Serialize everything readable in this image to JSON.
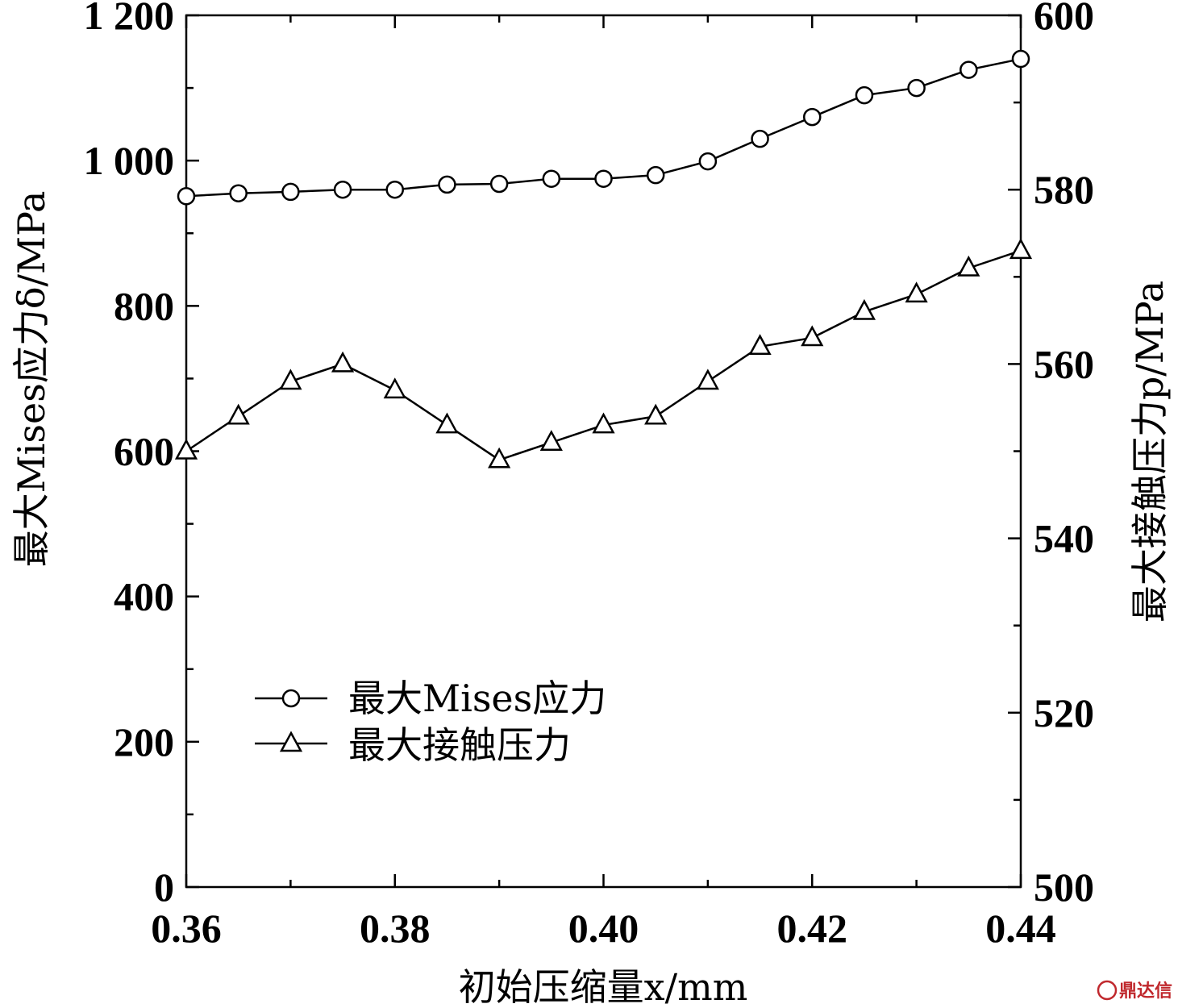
{
  "chart_data": {
    "type": "line",
    "x": [
      0.36,
      0.365,
      0.37,
      0.375,
      0.38,
      0.385,
      0.39,
      0.395,
      0.4,
      0.405,
      0.41,
      0.415,
      0.42,
      0.425,
      0.43,
      0.435,
      0.44
    ],
    "xlim": [
      0.36,
      0.44
    ],
    "xticks": [
      "0.36",
      "0.38",
      "0.40",
      "0.42",
      "0.44"
    ],
    "xlabel": "初始压缩量x/mm",
    "ylim_left": [
      0,
      1200
    ],
    "yticks_left": [
      "0",
      "200",
      "400",
      "600",
      "800",
      "1 000",
      "1 200"
    ],
    "ylabel_left": "最大Mises应力δ/MPa",
    "ylim_right": [
      500,
      600
    ],
    "yticks_right": [
      "500",
      "520",
      "540",
      "560",
      "580",
      "600"
    ],
    "ylabel_right": "最大接触压力p/MPa",
    "series": [
      {
        "name": "最大Mises应力",
        "axis": "left",
        "marker": "circle",
        "values": [
          951,
          955,
          957,
          960,
          960,
          967,
          968,
          975,
          975,
          980,
          999,
          1030,
          1060,
          1090,
          1100,
          1125,
          1140
        ]
      },
      {
        "name": "最大接触压力",
        "axis": "right",
        "marker": "triangle",
        "values": [
          550,
          554,
          558,
          560,
          557,
          553,
          549,
          551,
          553,
          554,
          558,
          562,
          563,
          566,
          568,
          571,
          573
        ]
      }
    ],
    "grid": false,
    "legend_position": "lower-left",
    "colors": {
      "line": "#000000",
      "background": "#ffffff"
    }
  },
  "watermark": {
    "text": "鼎达信"
  }
}
